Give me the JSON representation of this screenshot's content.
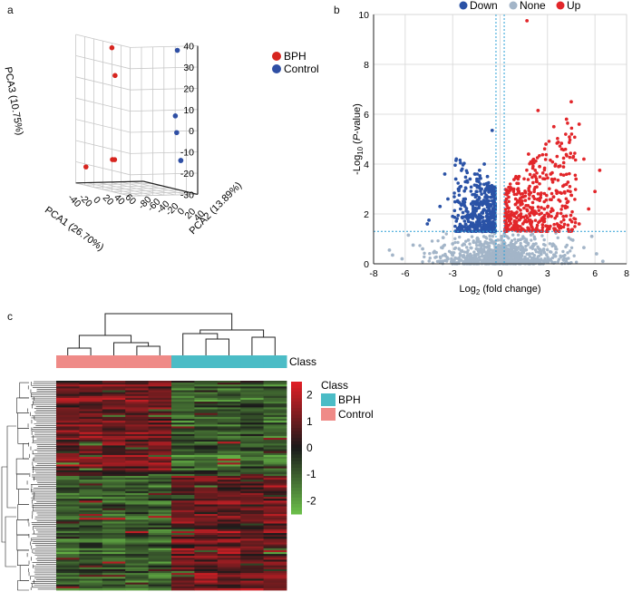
{
  "panels": {
    "a": "a",
    "b": "b",
    "c": "c"
  },
  "pca": {
    "chart_data": {
      "type": "scatter",
      "axes": {
        "x": {
          "label": "PCA1 (26.70%)",
          "ticks": [
            "-40",
            "-20",
            "0",
            "20",
            "40",
            "60"
          ],
          "range": [
            -50,
            70
          ]
        },
        "y": {
          "label": "PCA2 (13.89%)",
          "ticks": [
            "-80",
            "-60",
            "-40",
            "-20",
            "0",
            "20",
            "40"
          ],
          "range": [
            -80,
            40
          ]
        },
        "z": {
          "label": "PCA3 (10.75%)",
          "ticks": [
            "-30",
            "-20",
            "-10",
            "0",
            "10",
            "20",
            "30",
            "40"
          ],
          "range": [
            -30,
            40
          ]
        }
      },
      "legend": [
        "BPH",
        "Control"
      ],
      "legend_position": "right",
      "grid": true,
      "colors": {
        "BPH": "#d7251f",
        "Control": "#2f4fa4"
      },
      "series": [
        {
          "name": "BPH",
          "points": [
            [
              -10,
              -50,
              35
            ],
            [
              -6,
              -48,
              22
            ],
            [
              -40,
              -70,
              -22
            ],
            [
              -5,
              -55,
              -18
            ],
            [
              -2,
              -54,
              -18
            ]
          ]
        },
        {
          "name": "Control",
          "points": [
            [
              50,
              20,
              37
            ],
            [
              48,
              18,
              6
            ],
            [
              52,
              16,
              -2
            ],
            [
              56,
              20,
              -15
            ],
            [
              57,
              19,
              -15
            ]
          ]
        }
      ]
    }
  },
  "volcano": {
    "chart_data": {
      "type": "scatter",
      "xlabel": "Log2 (fold change)",
      "ylabel": "-Log10 (P-value)",
      "xlim": [
        -8,
        8
      ],
      "ylim": [
        0,
        10
      ],
      "xticks": [
        "-8",
        "-6",
        "-3",
        "0",
        "3",
        "6",
        "8"
      ],
      "yticks": [
        "0",
        "2",
        "4",
        "6",
        "8",
        "10"
      ],
      "grid": true,
      "thresholds": {
        "x": [
          -0.26,
          0.26
        ],
        "y": 1.3
      },
      "legend": [
        "Down",
        "None",
        "Up"
      ],
      "legend_position": "top",
      "colors": {
        "Down": "#2a52a6",
        "None": "#a3b5c8",
        "Up": "#e2262a"
      },
      "series": [
        {
          "name": "Down",
          "points": [
            [
              -0.5,
              5.35
            ],
            [
              -1.0,
              4.0
            ],
            [
              -1.3,
              3.75
            ],
            [
              -1.6,
              3.6
            ],
            [
              -0.8,
              3.5
            ],
            [
              -1.9,
              3.4
            ],
            [
              -3.5,
              3.6
            ],
            [
              -2.8,
              3.4
            ],
            [
              -4.5,
              1.75
            ],
            [
              -4.6,
              1.6
            ],
            [
              -2.2,
              2.6
            ],
            [
              -1.5,
              2.9
            ],
            [
              -1.0,
              2.5
            ],
            [
              -0.7,
              2.2
            ],
            [
              -2.5,
              2.2
            ],
            [
              -3.0,
              1.9
            ],
            [
              -3.8,
              2.3
            ],
            [
              -1.2,
              1.9
            ],
            [
              -0.6,
              1.6
            ],
            [
              -2.0,
              1.7
            ],
            [
              -1.7,
              2.1
            ],
            [
              -0.9,
              3.0
            ],
            [
              -2.6,
              3.0
            ],
            [
              -3.3,
              2.6
            ],
            [
              -0.5,
              2.8
            ],
            [
              -1.4,
              1.5
            ]
          ]
        },
        {
          "name": "None",
          "points": [
            [
              -7.0,
              0.55
            ],
            [
              -6.8,
              0.35
            ],
            [
              -5.5,
              0.75
            ],
            [
              -4.9,
              0.6
            ],
            [
              -4.2,
              0.45
            ],
            [
              -3.6,
              1.05
            ],
            [
              -3.0,
              0.8
            ],
            [
              -2.5,
              0.35
            ],
            [
              -2.0,
              0.95
            ],
            [
              -1.5,
              0.6
            ],
            [
              -1.0,
              0.3
            ],
            [
              -0.5,
              0.9
            ],
            [
              -0.2,
              0.5
            ],
            [
              0.1,
              1.1
            ],
            [
              0.5,
              0.4
            ],
            [
              1.0,
              0.85
            ],
            [
              1.6,
              0.55
            ],
            [
              2.2,
              1.0
            ],
            [
              2.8,
              0.45
            ],
            [
              3.4,
              0.75
            ],
            [
              4.0,
              0.3
            ],
            [
              4.6,
              0.95
            ],
            [
              5.3,
              0.65
            ],
            [
              6.1,
              0.4
            ],
            [
              5.8,
              1.1
            ],
            [
              -6.2,
              0.2
            ],
            [
              -5.8,
              1.15
            ],
            [
              6.5,
              0.1
            ],
            [
              2.0,
              0.15
            ],
            [
              -3.3,
              0.2
            ]
          ]
        },
        {
          "name": "Up",
          "points": [
            [
              1.7,
              9.75
            ],
            [
              4.5,
              6.5
            ],
            [
              2.4,
              6.15
            ],
            [
              3.4,
              5.5
            ],
            [
              4.2,
              5.8
            ],
            [
              5.0,
              5.6
            ],
            [
              2.9,
              4.8
            ],
            [
              3.9,
              4.6
            ],
            [
              1.8,
              4.4
            ],
            [
              5.3,
              4.2
            ],
            [
              6.3,
              3.75
            ],
            [
              2.5,
              3.9
            ],
            [
              3.2,
              3.6
            ],
            [
              1.2,
              3.5
            ],
            [
              4.8,
              3.4
            ],
            [
              0.8,
              3.0
            ],
            [
              2.1,
              2.7
            ],
            [
              3.6,
              2.9
            ],
            [
              6.0,
              2.9
            ],
            [
              1.4,
              2.4
            ],
            [
              2.8,
              2.2
            ],
            [
              4.3,
              2.5
            ],
            [
              5.6,
              2.2
            ],
            [
              0.6,
              1.9
            ],
            [
              1.9,
              1.7
            ],
            [
              3.0,
              1.5
            ],
            [
              4.0,
              1.9
            ],
            [
              0.4,
              2.6
            ],
            [
              1.0,
              1.5
            ],
            [
              5.0,
              1.6
            ],
            [
              2.3,
              3.3
            ],
            [
              3.7,
              3.9
            ]
          ]
        }
      ]
    }
  },
  "heatmap": {
    "chart_data": {
      "type": "heatmap",
      "annotation_label": "Class",
      "column_classes": [
        "Control",
        "Control",
        "Control",
        "Control",
        "Control",
        "BPH",
        "BPH",
        "BPH",
        "BPH",
        "BPH"
      ],
      "value_range": [
        -2.5,
        2.5
      ],
      "scale_ticks": [
        "2",
        "1",
        "0",
        "-1",
        "-2"
      ],
      "legend": {
        "title": "Class",
        "items": [
          {
            "name": "BPH",
            "color": "#4bbcc6"
          },
          {
            "name": "Control",
            "color": "#ef8a87"
          }
        ]
      },
      "colors": {
        "high": "#e21f26",
        "mid": "#1a1a1a",
        "low": "#6cc04a"
      },
      "row_blocks": [
        {
          "fraction": 0.45,
          "pattern": "higher in Control, lower in BPH"
        },
        {
          "fraction": 0.55,
          "pattern": "lower in Control, higher in BPH"
        }
      ]
    }
  }
}
